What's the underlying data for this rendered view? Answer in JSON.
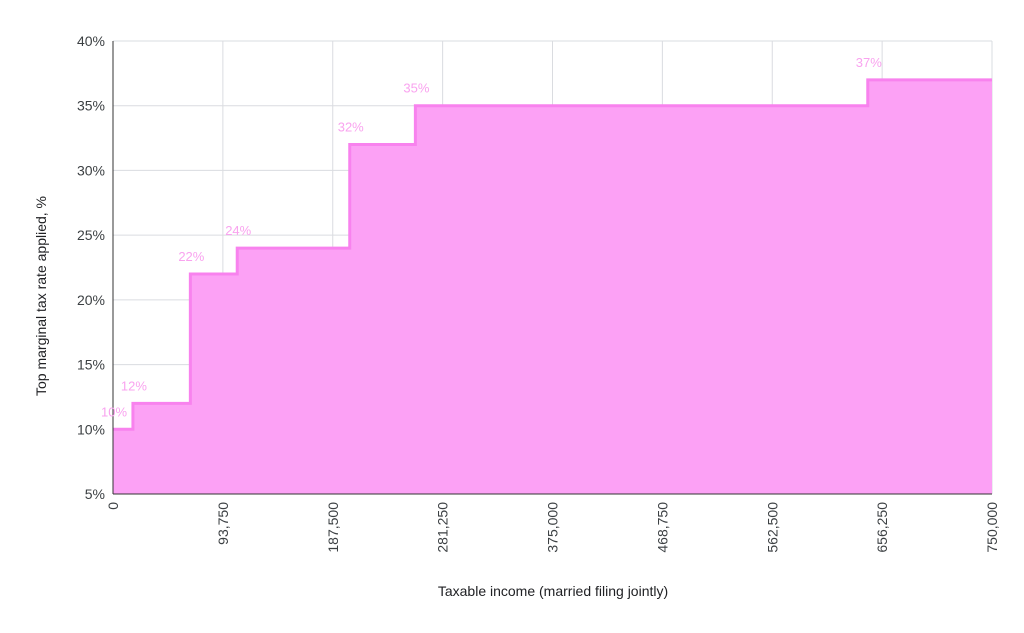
{
  "chart_data": {
    "type": "area",
    "step": true,
    "title": "",
    "xlabel": "Taxable income (married filing jointly)",
    "ylabel": "Top marginal tax rate applied, %",
    "xlim": [
      0,
      750000
    ],
    "ylim": [
      5,
      40
    ],
    "x_ticks": [
      "0",
      "93,750",
      "187,500",
      "281,250",
      "375,000",
      "468,750",
      "562,500",
      "656,250",
      "750,000"
    ],
    "x_tick_values": [
      0,
      93750,
      187500,
      281250,
      375000,
      468750,
      562500,
      656250,
      750000
    ],
    "y_ticks": [
      "5%",
      "10%",
      "15%",
      "20%",
      "25%",
      "30%",
      "35%",
      "40%"
    ],
    "y_tick_values": [
      5,
      10,
      15,
      20,
      25,
      30,
      35,
      40
    ],
    "grid": true,
    "fill_color": "#fca1f5",
    "line_color": "#f882ee",
    "label_color": "#f9a3ef",
    "points": [
      {
        "x": 0,
        "y": 10,
        "label": "10%"
      },
      {
        "x": 17000,
        "y": 12,
        "label": "12%"
      },
      {
        "x": 66000,
        "y": 22,
        "label": "22%"
      },
      {
        "x": 106000,
        "y": 24,
        "label": "24%"
      },
      {
        "x": 202000,
        "y": 32,
        "label": "32%"
      },
      {
        "x": 258000,
        "y": 35,
        "label": "35%"
      },
      {
        "x": 644000,
        "y": 37,
        "label": "37%"
      }
    ]
  }
}
